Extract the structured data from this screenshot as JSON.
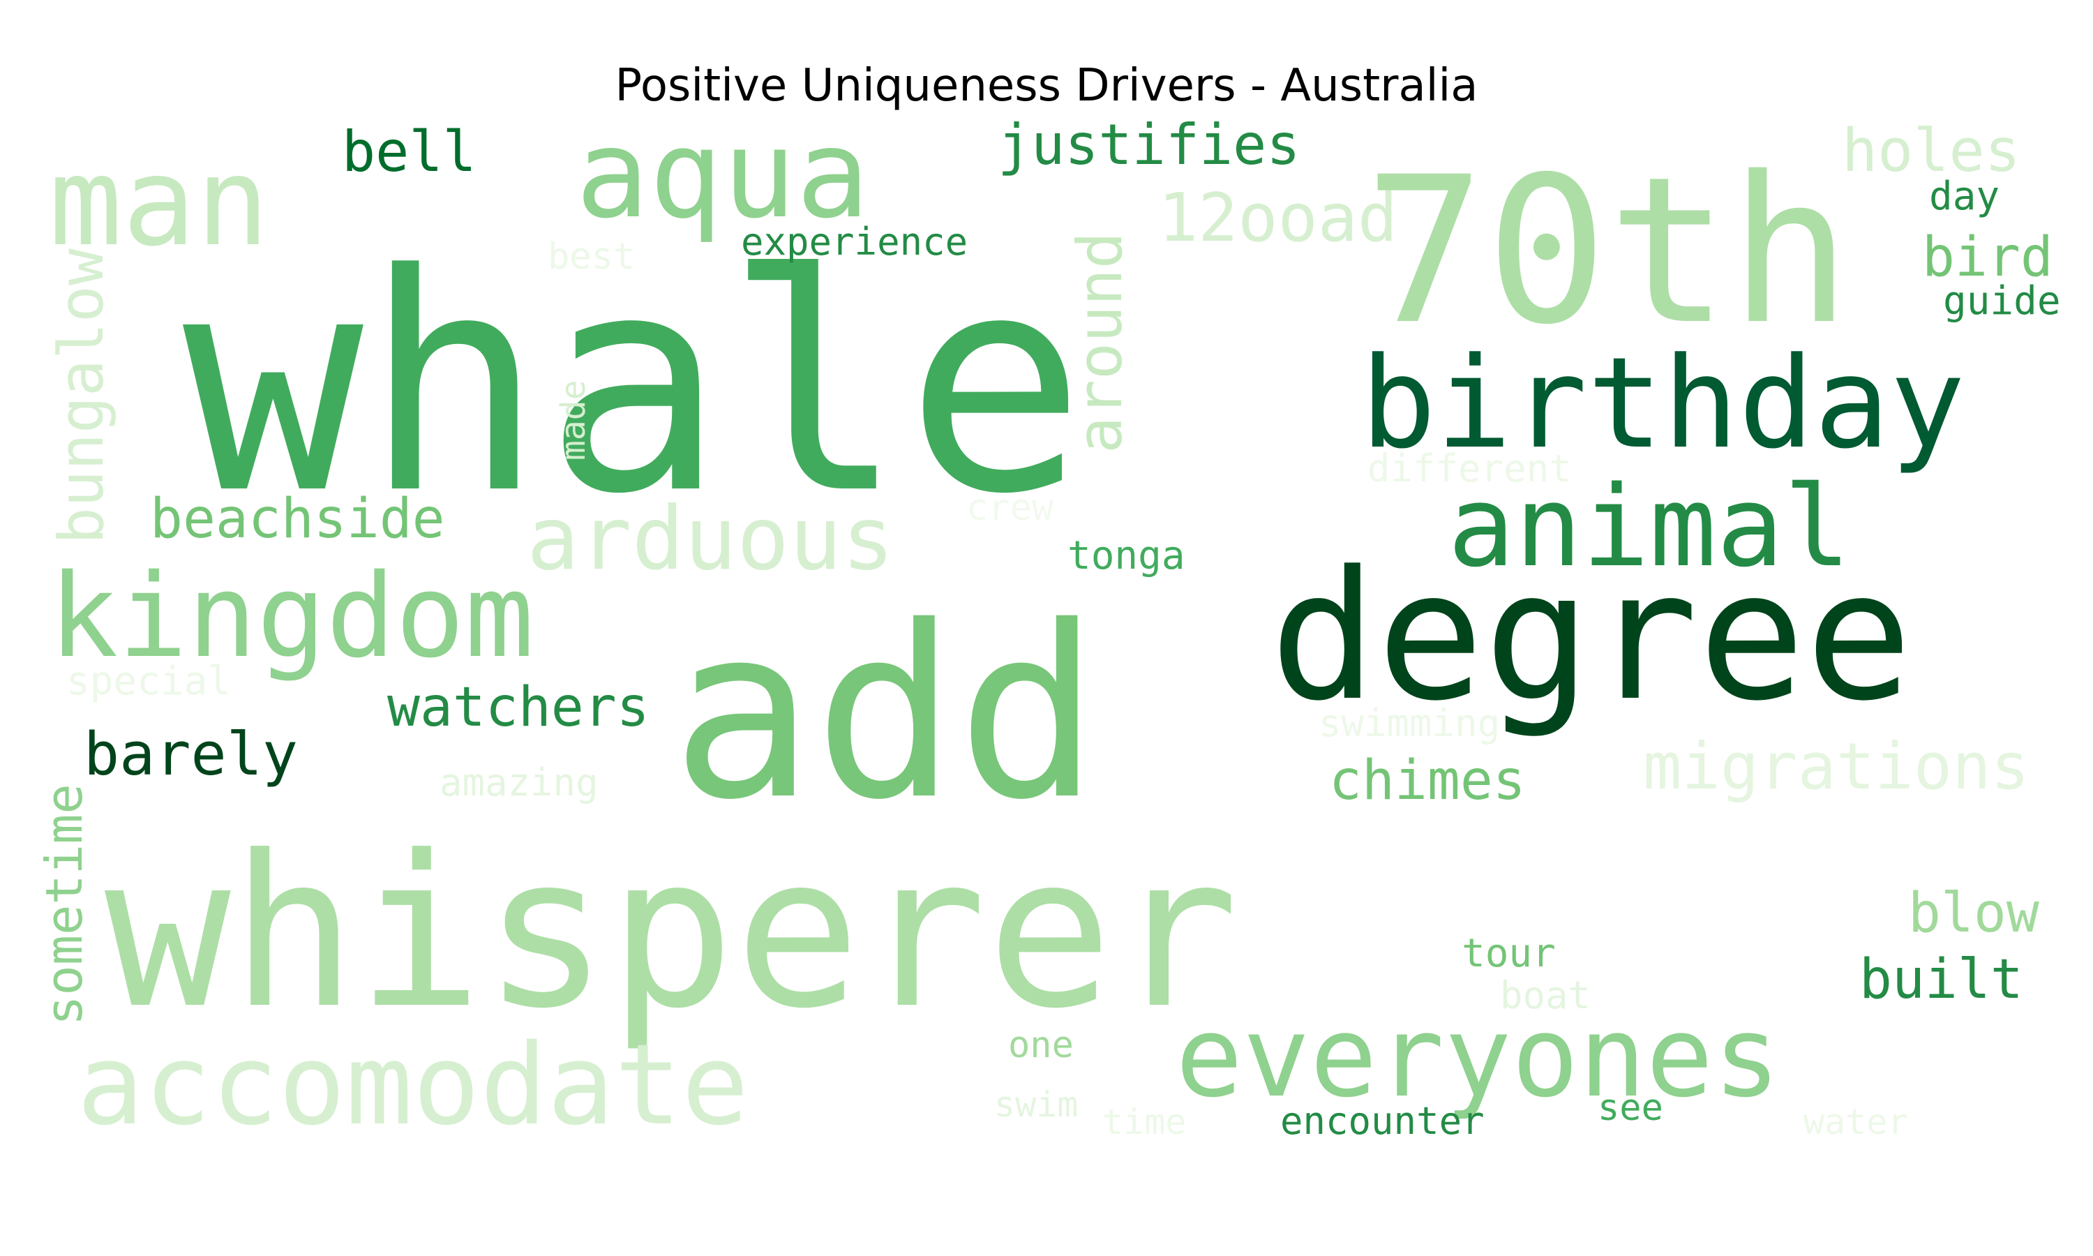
{
  "title": "Positive Uniqueness Drivers - Australia",
  "words": [
    {
      "text": "whale",
      "color": "#41ab5d"
    },
    {
      "text": "whisperer",
      "color": "#addea6"
    },
    {
      "text": "add",
      "color": "#78c679"
    },
    {
      "text": "70th",
      "color": "#addea6"
    },
    {
      "text": "degree",
      "color": "#00441b"
    },
    {
      "text": "birthday",
      "color": "#005a32"
    },
    {
      "text": "animal",
      "color": "#238b45"
    },
    {
      "text": "aqua",
      "color": "#8fd18e"
    },
    {
      "text": "man",
      "color": "#c7e9c0"
    },
    {
      "text": "kingdom",
      "color": "#8fd18e"
    },
    {
      "text": "accomodate",
      "color": "#d6efd0"
    },
    {
      "text": "everyones",
      "color": "#8fd18e"
    },
    {
      "text": "arduous",
      "color": "#d6efd0"
    },
    {
      "text": "justifies",
      "color": "#238b45"
    },
    {
      "text": "12ooad",
      "color": "#d6efd0"
    },
    {
      "text": "holes",
      "color": "#d6efd0"
    },
    {
      "text": "bell",
      "color": "#006d2c"
    },
    {
      "text": "beachside",
      "color": "#74c476"
    },
    {
      "text": "watchers",
      "color": "#238b45"
    },
    {
      "text": "barely",
      "color": "#00441b"
    },
    {
      "text": "chimes",
      "color": "#74c476"
    },
    {
      "text": "migrations",
      "color": "#e5f5e0"
    },
    {
      "text": "blow",
      "color": "#a1d99b"
    },
    {
      "text": "built",
      "color": "#238b45"
    },
    {
      "text": "bird",
      "color": "#74c476"
    },
    {
      "text": "day",
      "color": "#238b45"
    },
    {
      "text": "guide",
      "color": "#238b45"
    },
    {
      "text": "experience",
      "color": "#238b45"
    },
    {
      "text": "best",
      "color": "#edf8e9"
    },
    {
      "text": "around",
      "color": "#c7e9c0"
    },
    {
      "text": "bungalow",
      "color": "#d6efd0"
    },
    {
      "text": "made",
      "color": "#d6efd0"
    },
    {
      "text": "different",
      "color": "#edf8e9"
    },
    {
      "text": "crew",
      "color": "#f2faef"
    },
    {
      "text": "tonga",
      "color": "#41ab5d"
    },
    {
      "text": "special",
      "color": "#edf8e9"
    },
    {
      "text": "sometime",
      "color": "#8fd18e"
    },
    {
      "text": "amazing",
      "color": "#e5f5e0"
    },
    {
      "text": "swimming",
      "color": "#edf8e9"
    },
    {
      "text": "tour",
      "color": "#74c476"
    },
    {
      "text": "boat",
      "color": "#e5f5e0"
    },
    {
      "text": "one",
      "color": "#a1d99b"
    },
    {
      "text": "swim",
      "color": "#e5f5e0"
    },
    {
      "text": "time",
      "color": "#edf8e9"
    },
    {
      "text": "encounter",
      "color": "#238b45"
    },
    {
      "text": "see",
      "color": "#41ab5d"
    },
    {
      "text": "water",
      "color": "#edf8e9"
    }
  ]
}
